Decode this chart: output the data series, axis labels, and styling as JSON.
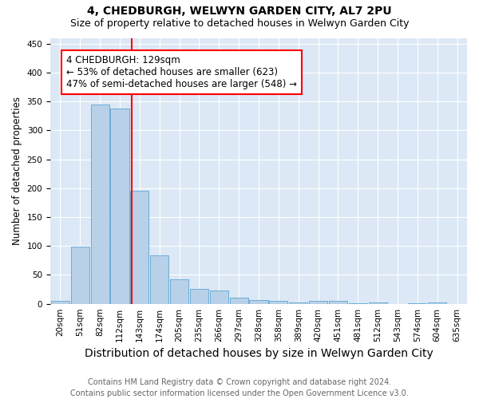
{
  "title": "4, CHEDBURGH, WELWYN GARDEN CITY, AL7 2PU",
  "subtitle": "Size of property relative to detached houses in Welwyn Garden City",
  "xlabel": "Distribution of detached houses by size in Welwyn Garden City",
  "ylabel": "Number of detached properties",
  "footer1": "Contains HM Land Registry data © Crown copyright and database right 2024.",
  "footer2": "Contains public sector information licensed under the Open Government Licence v3.0.",
  "bin_labels": [
    "20sqm",
    "51sqm",
    "82sqm",
    "112sqm",
    "143sqm",
    "174sqm",
    "205sqm",
    "235sqm",
    "266sqm",
    "297sqm",
    "328sqm",
    "358sqm",
    "389sqm",
    "420sqm",
    "451sqm",
    "481sqm",
    "512sqm",
    "543sqm",
    "574sqm",
    "604sqm",
    "635sqm"
  ],
  "bar_values": [
    5,
    99,
    345,
    338,
    196,
    84,
    43,
    26,
    23,
    10,
    6,
    5,
    3,
    5,
    5,
    1,
    3,
    0,
    1,
    3,
    0
  ],
  "bar_color": "#b8d0e8",
  "bar_edge_color": "#6baed6",
  "annotation_text": "4 CHEDBURGH: 129sqm\n← 53% of detached houses are smaller (623)\n47% of semi-detached houses are larger (548) →",
  "annotation_box_color": "white",
  "annotation_box_edge_color": "red",
  "vline_color": "red",
  "vline_position": 3.61,
  "ylim": [
    0,
    460
  ],
  "title_fontsize": 10,
  "subtitle_fontsize": 9,
  "xlabel_fontsize": 10,
  "ylabel_fontsize": 8.5,
  "tick_fontsize": 7.5,
  "annotation_fontsize": 8.5,
  "footer_fontsize": 7,
  "plot_bg_color": "#dce8f5",
  "fig_bg_color": "white"
}
